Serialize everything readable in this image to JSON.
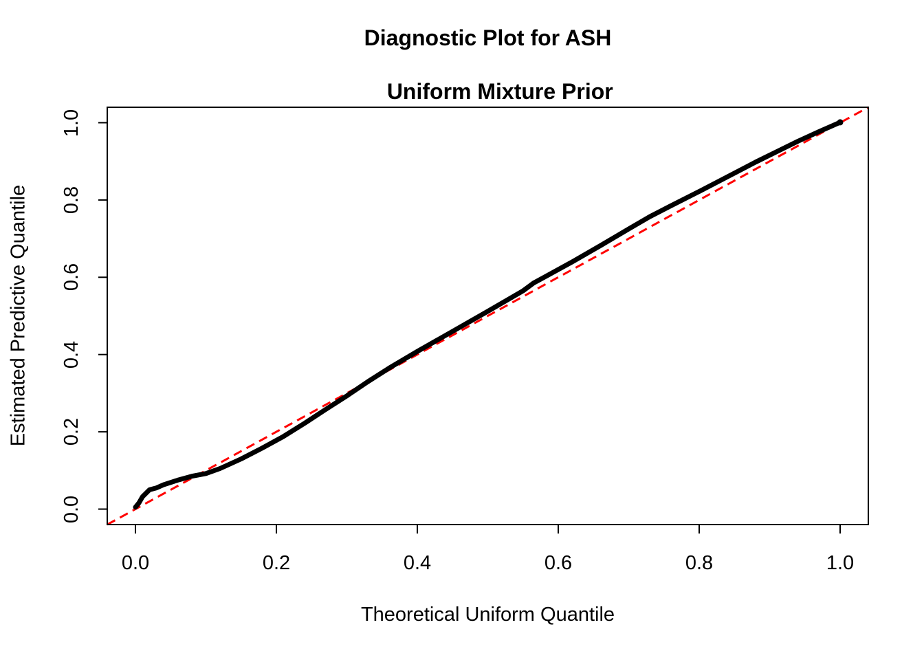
{
  "title": {
    "line1": "Diagnostic Plot for ASH",
    "line2": "Uniform Mixture Prior"
  },
  "axes": {
    "x": {
      "label": "Theoretical Uniform Quantile",
      "tick_labels": [
        "0.0",
        "0.2",
        "0.4",
        "0.6",
        "0.8",
        "1.0"
      ]
    },
    "y": {
      "label": "Estimated Predictive Quantile",
      "tick_labels": [
        "0.0",
        "0.2",
        "0.4",
        "0.6",
        "0.8",
        "1.0"
      ]
    }
  },
  "chart_data": {
    "type": "line",
    "title": "Diagnostic Plot for ASH\nUniform Mixture Prior",
    "xlabel": "Theoretical Uniform Quantile",
    "ylabel": "Estimated Predictive Quantile",
    "xlim": [
      -0.04,
      1.04
    ],
    "ylim": [
      -0.04,
      1.04
    ],
    "x_ticks": [
      0.0,
      0.2,
      0.4,
      0.6,
      0.8,
      1.0
    ],
    "y_ticks": [
      0.0,
      0.2,
      0.4,
      0.6,
      0.8,
      1.0
    ],
    "grid": false,
    "legend": "none",
    "colors": {
      "curve": "#000000",
      "reference_line": "#FF0000",
      "frame": "#000000",
      "background": "#FFFFFF"
    },
    "series": [
      {
        "name": "estimated-predictive-quantile-curve",
        "color": "#000000",
        "style": "thick-solid-point-band",
        "points": [
          [
            0.0,
            0.005
          ],
          [
            0.005,
            0.016
          ],
          [
            0.01,
            0.032
          ],
          [
            0.02,
            0.05
          ],
          [
            0.03,
            0.055
          ],
          [
            0.04,
            0.063
          ],
          [
            0.06,
            0.075
          ],
          [
            0.08,
            0.085
          ],
          [
            0.1,
            0.092
          ],
          [
            0.12,
            0.105
          ],
          [
            0.15,
            0.13
          ],
          [
            0.18,
            0.158
          ],
          [
            0.21,
            0.188
          ],
          [
            0.24,
            0.222
          ],
          [
            0.255,
            0.24
          ],
          [
            0.27,
            0.258
          ],
          [
            0.3,
            0.293
          ],
          [
            0.33,
            0.33
          ],
          [
            0.36,
            0.365
          ],
          [
            0.4,
            0.408
          ],
          [
            0.45,
            0.46
          ],
          [
            0.5,
            0.512
          ],
          [
            0.55,
            0.565
          ],
          [
            0.565,
            0.585
          ],
          [
            0.58,
            0.6
          ],
          [
            0.62,
            0.64
          ],
          [
            0.66,
            0.682
          ],
          [
            0.7,
            0.725
          ],
          [
            0.73,
            0.757
          ],
          [
            0.76,
            0.785
          ],
          [
            0.8,
            0.822
          ],
          [
            0.84,
            0.86
          ],
          [
            0.88,
            0.898
          ],
          [
            0.91,
            0.925
          ],
          [
            0.94,
            0.952
          ],
          [
            0.97,
            0.977
          ],
          [
            0.99,
            0.993
          ],
          [
            1.0,
            1.001
          ]
        ]
      },
      {
        "name": "reference-diagonal",
        "color": "#FF0000",
        "style": "dashed",
        "points": [
          [
            -0.04,
            -0.04
          ],
          [
            1.04,
            1.04
          ]
        ]
      }
    ]
  }
}
